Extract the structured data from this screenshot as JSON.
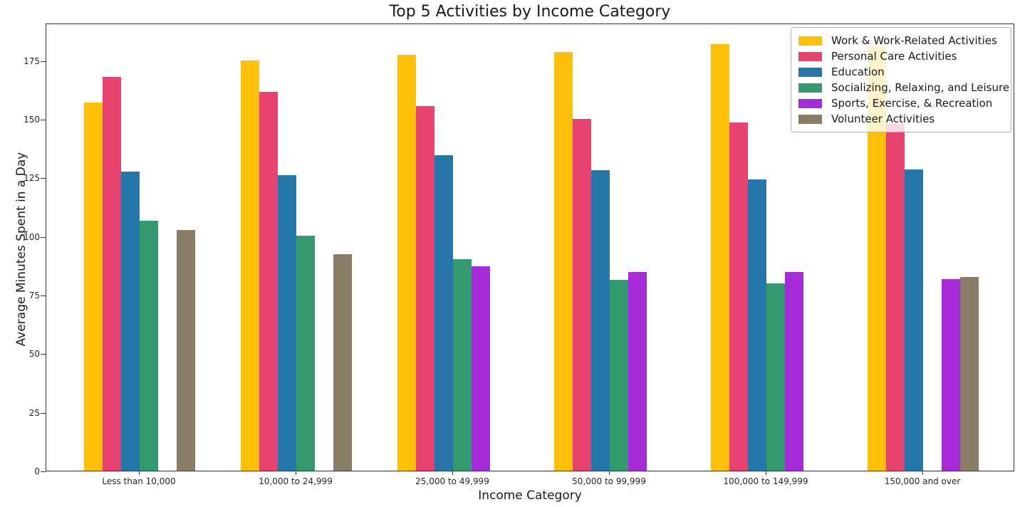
{
  "chart_data": {
    "type": "bar",
    "title": "Top 5 Activities by Income Category",
    "xlabel": "Income Category",
    "ylabel": "Average Minutes Spent in a Day",
    "ylim": [
      0,
      191
    ],
    "yticks": [
      0,
      25,
      50,
      75,
      100,
      125,
      150,
      175
    ],
    "grid": false,
    "legend_position": "upper right",
    "categories": [
      "Less than 10,000",
      "10,000 to 24,999",
      "25,000 to 49,999",
      "50,000 to 99,999",
      "100,000 to 149,999",
      "150,000 and over"
    ],
    "series": [
      {
        "name": "Work & Work-Related Activities",
        "color": "#FFC107",
        "values": [
          157.5,
          175.5,
          178,
          179,
          182.5,
          181.5
        ]
      },
      {
        "name": "Personal Care Activities",
        "color": "#E8426F",
        "values": [
          168.5,
          162,
          156,
          150.5,
          149,
          148.5
        ]
      },
      {
        "name": "Education",
        "color": "#2776A9",
        "values": [
          128,
          126.5,
          135,
          128.5,
          124.5,
          129
        ]
      },
      {
        "name": "Socializing, Relaxing, and Leisure",
        "color": "#33996F",
        "values": [
          107,
          100.5,
          90.5,
          81.5,
          80,
          null
        ]
      },
      {
        "name": "Sports, Exercise, & Recreation",
        "color": "#A52BD6",
        "values": [
          null,
          null,
          87.5,
          85,
          85,
          82
        ]
      },
      {
        "name": "Volunteer Activities",
        "color": "#8A7D68",
        "values": [
          103,
          92.5,
          null,
          null,
          null,
          83
        ]
      }
    ]
  }
}
